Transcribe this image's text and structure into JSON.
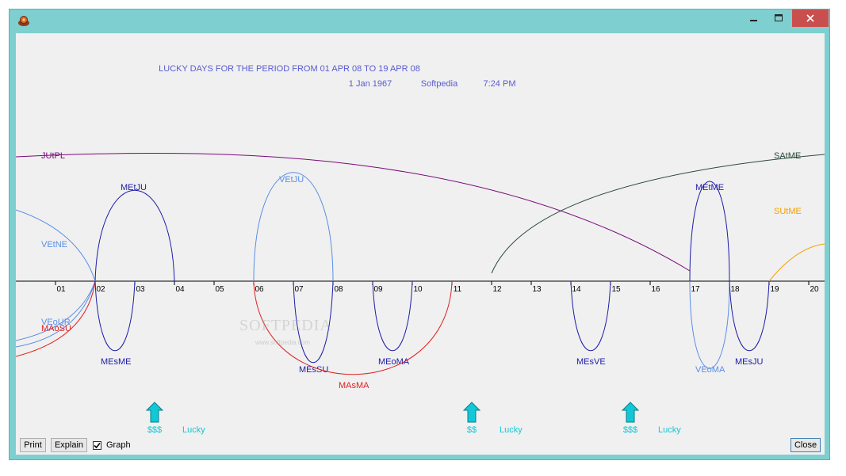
{
  "window": {
    "controls": {
      "minimize": "minimize-icon",
      "maximize": "maximize-icon",
      "close": "close-icon"
    }
  },
  "header": {
    "title": "LUCKY DAYS FOR THE PERIOD FROM 01 APR 08 TO 19 APR 08",
    "date": "1 Jan 1967",
    "name": "Softpedia",
    "time": "7:24 PM"
  },
  "chart_data": {
    "type": "line",
    "axis": {
      "day_labels": [
        "01",
        "02",
        "03",
        "04",
        "05",
        "06",
        "07",
        "08",
        "09",
        "10",
        "11",
        "12",
        "13",
        "14",
        "15",
        "16",
        "17",
        "18",
        "19",
        "20"
      ]
    },
    "arcs_above": [
      {
        "label": "JUtPL",
        "color": "#7a0a7a"
      },
      {
        "label": "SAtME",
        "color": "#2a4a3a"
      },
      {
        "label": "SUtME",
        "color": "#f5a000"
      },
      {
        "label": "MEtJU",
        "color": "#1c1ca8"
      },
      {
        "label": "VEtJU",
        "color": "#5a8ee6"
      },
      {
        "label": "VEtNE",
        "color": "#5a8ee6"
      },
      {
        "label": "MEtME",
        "color": "#1c1ca8"
      }
    ],
    "arcs_below": [
      {
        "label": "VEoUR",
        "color": "#5a8ee6"
      },
      {
        "label": "MAoSU",
        "color": "#e02020"
      },
      {
        "label": "MEsME",
        "color": "#1c1ca8"
      },
      {
        "label": "MEsSU",
        "color": "#1c1ca8"
      },
      {
        "label": "MEoMA",
        "color": "#1c1ca8"
      },
      {
        "label": "MAsMA",
        "color": "#e02020"
      },
      {
        "label": "MEsVE",
        "color": "#1c1ca8"
      },
      {
        "label": "VEoMA",
        "color": "#5a8ee6"
      },
      {
        "label": "MEsJU",
        "color": "#1c1ca8"
      }
    ],
    "lucky_markers": [
      {
        "symbol": "$$$",
        "text": "Lucky"
      },
      {
        "symbol": "$$",
        "text": "Lucky"
      },
      {
        "symbol": "$$$",
        "text": "Lucky"
      }
    ]
  },
  "watermark": {
    "text": "SOFTPEDIA",
    "sub": "www.softpedia.com"
  },
  "controls": {
    "print_label": "Print",
    "explain_label": "Explain",
    "graph_label": "Graph",
    "graph_checked": true,
    "close_label": "Close"
  },
  "colors": {
    "header_text": "#5a5ad0",
    "lucky": "#10c8d8",
    "axis": "#000000"
  }
}
